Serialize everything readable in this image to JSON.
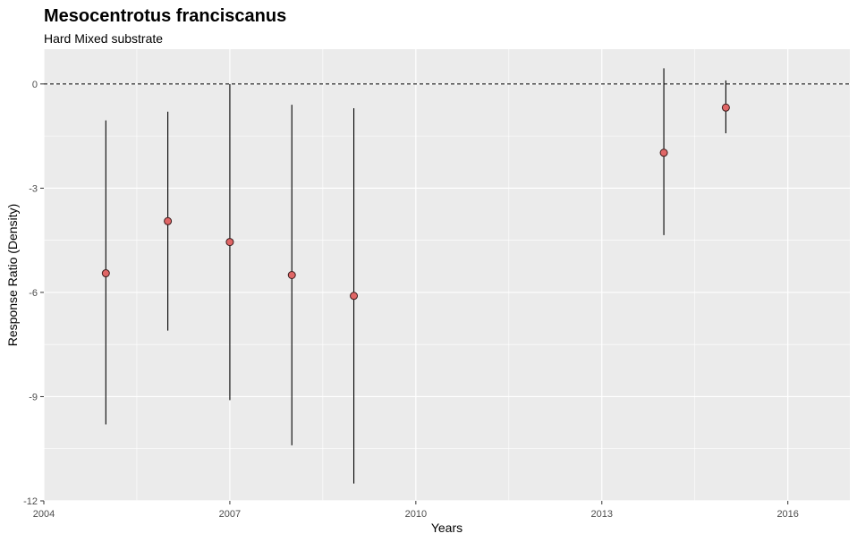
{
  "chart_data": {
    "type": "scatter",
    "title": "Mesocentrotus franciscanus",
    "subtitle": "Hard Mixed substrate",
    "xlabel": "Years",
    "ylabel": "Response Ratio (Density)",
    "xlim": [
      2004,
      2017
    ],
    "ylim": [
      -12,
      1
    ],
    "xticks": [
      2004,
      2007,
      2010,
      2013,
      2016
    ],
    "yticks": [
      -12,
      -9,
      -6,
      -3,
      0
    ],
    "reference_line": {
      "y": 0,
      "style": "dashed"
    },
    "grid": true,
    "point_color": "#e06666",
    "panel_background": "#ebebeb",
    "points": [
      {
        "x": 2005,
        "y": -5.45,
        "ymin": -9.8,
        "ymax": -1.05
      },
      {
        "x": 2006,
        "y": -3.95,
        "ymin": -7.1,
        "ymax": -0.8
      },
      {
        "x": 2007,
        "y": -4.55,
        "ymin": -9.1,
        "ymax": 0.0
      },
      {
        "x": 2008,
        "y": -5.5,
        "ymin": -10.4,
        "ymax": -0.6
      },
      {
        "x": 2009,
        "y": -6.1,
        "ymin": -11.5,
        "ymax": -0.7
      },
      {
        "x": 2014,
        "y": -1.98,
        "ymin": -4.35,
        "ymax": 0.45
      },
      {
        "x": 2015,
        "y": -0.68,
        "ymin": -1.42,
        "ymax": 0.1
      }
    ]
  }
}
